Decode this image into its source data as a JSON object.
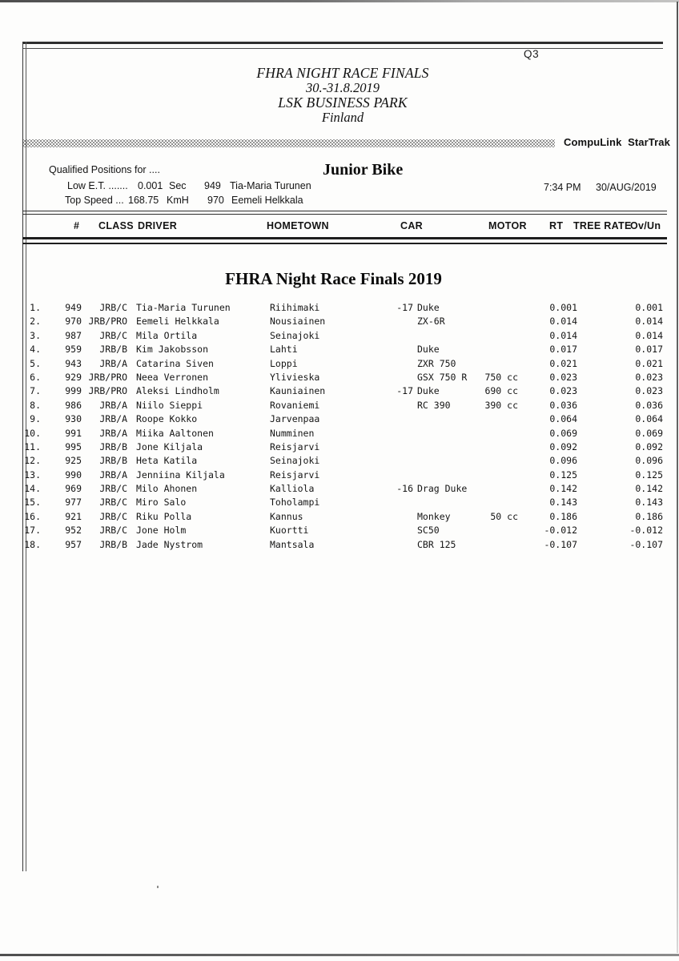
{
  "page": {
    "sheet_label": "Q3"
  },
  "header": {
    "event_title": "FHRA NIGHT RACE FINALS",
    "event_dates": "30.-31.8.2019",
    "venue": "LSK BUSINESS PARK",
    "country": "Finland",
    "brand": "CompuLink StarTrak"
  },
  "qualify": {
    "label": "Qualified Positions for ....",
    "class_name": "Junior Bike",
    "low_et_label": "Low E.T. .......",
    "low_et_value": "0.001",
    "low_et_unit": "Sec",
    "low_et_number": "949",
    "low_et_driver": "Tia-Maria Turunen",
    "top_speed_label": "Top Speed ...",
    "top_speed_value": "168.75",
    "top_speed_unit": "KmH",
    "top_speed_number": "970",
    "top_speed_driver": "Eemeli Helkkala",
    "time": "7:34 PM",
    "date": "30/AUG/2019"
  },
  "table": {
    "columns": [
      "#",
      "CLASS",
      "DRIVER",
      "HOMETOWN",
      "CAR",
      "MOTOR",
      "RT",
      "TREE RATE",
      "Ov/Un"
    ],
    "section_title": "FHRA Night Race Finals 2019",
    "rows": [
      {
        "position": "1.",
        "number": "949",
        "class": "JRB/C",
        "driver": "Tia-Maria Turunen",
        "hometown": "Riihimaki",
        "car_year": "-17",
        "car_model": "Duke",
        "motor": "",
        "rt": "0.001",
        "ovun": "0.001"
      },
      {
        "position": "2.",
        "number": "970",
        "class": "JRB/PRO",
        "driver": "Eemeli Helkkala",
        "hometown": "Nousiainen",
        "car_year": "",
        "car_model": "ZX-6R",
        "motor": "",
        "rt": "0.014",
        "ovun": "0.014"
      },
      {
        "position": "3.",
        "number": "987",
        "class": "JRB/C",
        "driver": "Mila Ortila",
        "hometown": "Seinajoki",
        "car_year": "",
        "car_model": "",
        "motor": "",
        "rt": "0.014",
        "ovun": "0.014"
      },
      {
        "position": "4.",
        "number": "959",
        "class": "JRB/B",
        "driver": "Kim Jakobsson",
        "hometown": "Lahti",
        "car_year": "",
        "car_model": "Duke",
        "motor": "",
        "rt": "0.017",
        "ovun": "0.017"
      },
      {
        "position": "5.",
        "number": "943",
        "class": "JRB/A",
        "driver": "Catarina Siven",
        "hometown": "Loppi",
        "car_year": "",
        "car_model": "ZXR 750",
        "motor": "",
        "rt": "0.021",
        "ovun": "0.021"
      },
      {
        "position": "6.",
        "number": "929",
        "class": "JRB/PRO",
        "driver": "Neea Verronen",
        "hometown": "Ylivieska",
        "car_year": "",
        "car_model": "GSX 750 R",
        "motor": "750 cc",
        "rt": "0.023",
        "ovun": "0.023"
      },
      {
        "position": "7.",
        "number": "999",
        "class": "JRB/PRO",
        "driver": "Aleksi Lindholm",
        "hometown": "Kauniainen",
        "car_year": "-17",
        "car_model": "Duke",
        "motor": "690 cc",
        "rt": "0.023",
        "ovun": "0.023"
      },
      {
        "position": "8.",
        "number": "986",
        "class": "JRB/A",
        "driver": "Niilo Sieppi",
        "hometown": "Rovaniemi",
        "car_year": "",
        "car_model": "RC 390",
        "motor": "390 cc",
        "rt": "0.036",
        "ovun": "0.036"
      },
      {
        "position": "9.",
        "number": "930",
        "class": "JRB/A",
        "driver": "Roope Kokko",
        "hometown": "Jarvenpaa",
        "car_year": "",
        "car_model": "",
        "motor": "",
        "rt": "0.064",
        "ovun": "0.064"
      },
      {
        "position": "10.",
        "number": "991",
        "class": "JRB/A",
        "driver": "Miika Aaltonen",
        "hometown": "Numminen",
        "car_year": "",
        "car_model": "",
        "motor": "",
        "rt": "0.069",
        "ovun": "0.069"
      },
      {
        "position": "11.",
        "number": "995",
        "class": "JRB/B",
        "driver": "Jone Kiljala",
        "hometown": "Reisjarvi",
        "car_year": "",
        "car_model": "",
        "motor": "",
        "rt": "0.092",
        "ovun": "0.092"
      },
      {
        "position": "12.",
        "number": "925",
        "class": "JRB/B",
        "driver": "Heta Katila",
        "hometown": "Seinajoki",
        "car_year": "",
        "car_model": "",
        "motor": "",
        "rt": "0.096",
        "ovun": "0.096"
      },
      {
        "position": "13.",
        "number": "990",
        "class": "JRB/A",
        "driver": "Jenniina Kiljala",
        "hometown": "Reisjarvi",
        "car_year": "",
        "car_model": "",
        "motor": "",
        "rt": "0.125",
        "ovun": "0.125"
      },
      {
        "position": "14.",
        "number": "969",
        "class": "JRB/C",
        "driver": "Milo Ahonen",
        "hometown": "Kalliola",
        "car_year": "-16",
        "car_model": "Drag Duke",
        "motor": "",
        "rt": "0.142",
        "ovun": "0.142"
      },
      {
        "position": "15.",
        "number": "977",
        "class": "JRB/C",
        "driver": "Miro Salo",
        "hometown": "Toholampi",
        "car_year": "",
        "car_model": "",
        "motor": "",
        "rt": "0.143",
        "ovun": "0.143"
      },
      {
        "position": "16.",
        "number": "921",
        "class": "JRB/C",
        "driver": "Riku Polla",
        "hometown": "Kannus",
        "car_year": "",
        "car_model": "Monkey",
        "motor": "50 cc",
        "rt": "0.186",
        "ovun": "0.186"
      },
      {
        "position": "17.",
        "number": "952",
        "class": "JRB/C",
        "driver": "Jone Holm",
        "hometown": "Kuortti",
        "car_year": "",
        "car_model": "SC50",
        "motor": "",
        "rt": "-0.012",
        "ovun": "-0.012"
      },
      {
        "position": "18.",
        "number": "957",
        "class": "JRB/B",
        "driver": "Jade Nystrom",
        "hometown": "Mantsala",
        "car_year": "",
        "car_model": "CBR 125",
        "motor": "",
        "rt": "-0.107",
        "ovun": "-0.107"
      }
    ]
  }
}
